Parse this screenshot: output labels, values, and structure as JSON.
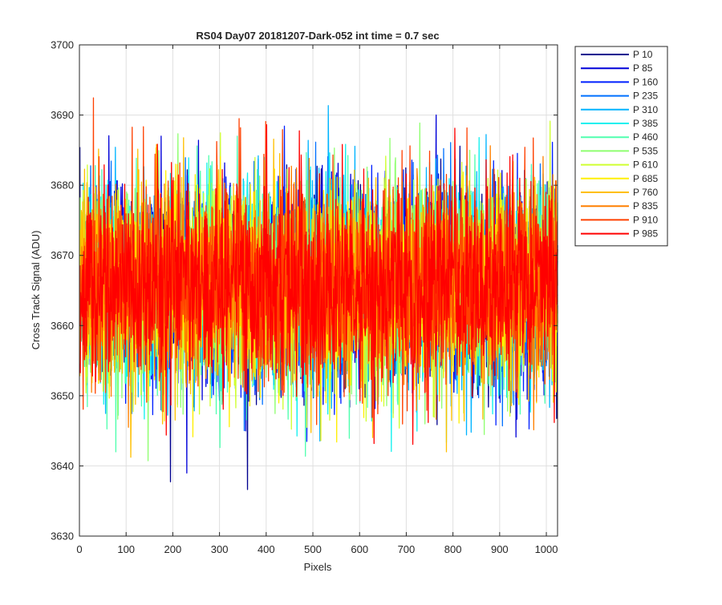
{
  "chart_data": {
    "type": "line",
    "title": "RS04 Day07 20181207-Dark-052 int time = 0.7 sec",
    "xlabel": "Pixels",
    "ylabel": "Cross Track Signal (ADU)",
    "xlim": [
      0,
      1024
    ],
    "ylim": [
      3630,
      3700
    ],
    "xticks": [
      0,
      100,
      200,
      300,
      400,
      500,
      600,
      700,
      800,
      900,
      1000
    ],
    "yticks": [
      3630,
      3640,
      3650,
      3660,
      3670,
      3680,
      3690,
      3700
    ],
    "grid": true,
    "legend_position": "outside-top-right",
    "n_points": 1024,
    "signal_mean": 3666,
    "signal_spread": [
      3636,
      3696
    ],
    "series": [
      {
        "name": "P 10",
        "color": "#00008f"
      },
      {
        "name": "P 85",
        "color": "#0000d9"
      },
      {
        "name": "P 160",
        "color": "#0020ff"
      },
      {
        "name": "P 235",
        "color": "#0070ff"
      },
      {
        "name": "P 310",
        "color": "#00b4ff"
      },
      {
        "name": "P 385",
        "color": "#10f0ef"
      },
      {
        "name": "P 460",
        "color": "#50ffaf"
      },
      {
        "name": "P 535",
        "color": "#8fff70"
      },
      {
        "name": "P 610",
        "color": "#cfff30"
      },
      {
        "name": "P 685",
        "color": "#ffef00"
      },
      {
        "name": "P 760",
        "color": "#ffbf00"
      },
      {
        "name": "P 835",
        "color": "#ff8000"
      },
      {
        "name": "P 910",
        "color": "#ff4000"
      },
      {
        "name": "P 985",
        "color": "#ff0000"
      }
    ]
  }
}
